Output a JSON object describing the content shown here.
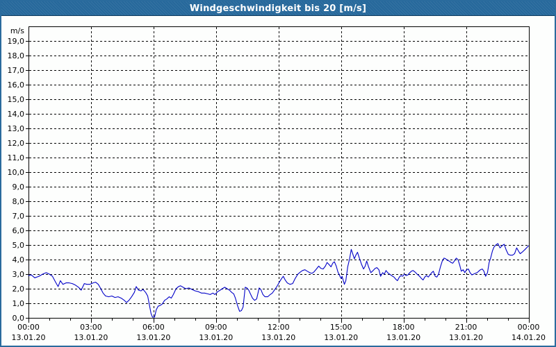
{
  "window": {
    "title": "Windgeschwindigkeit bis 20 [m/s]"
  },
  "colors": {
    "frame": "#2a6b9d",
    "title_bar": "#26689b",
    "title_bar_edge": "#0d3a5e",
    "background": "#fdfefd",
    "grid": "#000000",
    "line": "#0000c8",
    "title_text": "#ffffff"
  },
  "chart_data": {
    "type": "line",
    "title": "Windgeschwindigkeit bis 20 [m/s]",
    "ylabel_unit": "m/s",
    "ylim": [
      0,
      20
    ],
    "xlim_hours": [
      0,
      24
    ],
    "grid": "dashed, horizontal every 1 m/s, vertical every 3 h",
    "legend_position": "none",
    "y_tick_labels": [
      "0,0",
      "1,0",
      "2,0",
      "3,0",
      "4,0",
      "5,0",
      "6,0",
      "7,0",
      "8,0",
      "9,0",
      "10,0",
      "11,0",
      "12,0",
      "13,0",
      "14,0",
      "15,0",
      "16,0",
      "17,0",
      "18,0",
      "19,0"
    ],
    "x_ticks": [
      {
        "hour": 0,
        "time": "00:00",
        "date": "13.01.20"
      },
      {
        "hour": 3,
        "time": "03:00",
        "date": "13.01.20"
      },
      {
        "hour": 6,
        "time": "06:00",
        "date": "13.01.20"
      },
      {
        "hour": 9,
        "time": "09:00",
        "date": "13.01.20"
      },
      {
        "hour": 12,
        "time": "12:00",
        "date": "13.01.20"
      },
      {
        "hour": 15,
        "time": "15:00",
        "date": "13.01.20"
      },
      {
        "hour": 18,
        "time": "18:00",
        "date": "13.01.20"
      },
      {
        "hour": 21,
        "time": "21:00",
        "date": "13.01.20"
      },
      {
        "hour": 24,
        "time": "00:00",
        "date": "14.01.20"
      }
    ],
    "minor_x_tick_interval_hours": 1,
    "series": [
      {
        "name": "Windgeschwindigkeit",
        "unit": "m/s",
        "color": "#0000c8",
        "points": [
          [
            0.0,
            2.9
          ],
          [
            0.13,
            2.95
          ],
          [
            0.3,
            2.75
          ],
          [
            0.5,
            2.85
          ],
          [
            0.68,
            3.0
          ],
          [
            0.85,
            3.1
          ],
          [
            1.0,
            3.0
          ],
          [
            1.15,
            2.85
          ],
          [
            1.3,
            2.45
          ],
          [
            1.42,
            2.15
          ],
          [
            1.53,
            2.55
          ],
          [
            1.65,
            2.3
          ],
          [
            1.8,
            2.4
          ],
          [
            1.95,
            2.4
          ],
          [
            2.1,
            2.35
          ],
          [
            2.25,
            2.25
          ],
          [
            2.4,
            2.1
          ],
          [
            2.53,
            1.9
          ],
          [
            2.68,
            2.35
          ],
          [
            2.8,
            2.3
          ],
          [
            2.95,
            2.3
          ],
          [
            3.1,
            2.4
          ],
          [
            3.22,
            2.45
          ],
          [
            3.35,
            2.3
          ],
          [
            3.45,
            2.05
          ],
          [
            3.58,
            1.7
          ],
          [
            3.7,
            1.5
          ],
          [
            3.85,
            1.45
          ],
          [
            4.0,
            1.5
          ],
          [
            4.15,
            1.4
          ],
          [
            4.3,
            1.45
          ],
          [
            4.45,
            1.35
          ],
          [
            4.6,
            1.2
          ],
          [
            4.7,
            1.05
          ],
          [
            4.82,
            1.2
          ],
          [
            4.95,
            1.45
          ],
          [
            5.08,
            1.75
          ],
          [
            5.17,
            2.15
          ],
          [
            5.28,
            1.9
          ],
          [
            5.4,
            1.85
          ],
          [
            5.5,
            1.95
          ],
          [
            5.62,
            1.75
          ],
          [
            5.72,
            1.5
          ],
          [
            5.8,
            0.9
          ],
          [
            5.88,
            0.3
          ],
          [
            5.95,
            0.05
          ],
          [
            6.05,
            0.05
          ],
          [
            6.13,
            0.55
          ],
          [
            6.22,
            0.8
          ],
          [
            6.32,
            0.85
          ],
          [
            6.42,
            0.95
          ],
          [
            6.53,
            1.2
          ],
          [
            6.64,
            1.3
          ],
          [
            6.75,
            1.45
          ],
          [
            6.85,
            1.35
          ],
          [
            6.95,
            1.6
          ],
          [
            7.08,
            2.0
          ],
          [
            7.2,
            2.15
          ],
          [
            7.3,
            2.2
          ],
          [
            7.42,
            2.1
          ],
          [
            7.55,
            2.0
          ],
          [
            7.7,
            2.05
          ],
          [
            7.85,
            1.95
          ],
          [
            8.0,
            1.85
          ],
          [
            8.15,
            1.8
          ],
          [
            8.3,
            1.7
          ],
          [
            8.45,
            1.7
          ],
          [
            8.6,
            1.65
          ],
          [
            8.72,
            1.6
          ],
          [
            8.85,
            1.7
          ],
          [
            8.95,
            1.6
          ],
          [
            9.08,
            1.8
          ],
          [
            9.2,
            1.9
          ],
          [
            9.3,
            2.0
          ],
          [
            9.42,
            2.1
          ],
          [
            9.53,
            2.0
          ],
          [
            9.65,
            1.9
          ],
          [
            9.75,
            1.75
          ],
          [
            9.85,
            1.65
          ],
          [
            9.93,
            1.35
          ],
          [
            10.03,
            0.85
          ],
          [
            10.13,
            0.45
          ],
          [
            10.22,
            0.5
          ],
          [
            10.3,
            0.75
          ],
          [
            10.4,
            2.1
          ],
          [
            10.48,
            2.05
          ],
          [
            10.57,
            1.9
          ],
          [
            10.65,
            1.65
          ],
          [
            10.75,
            1.35
          ],
          [
            10.85,
            1.2
          ],
          [
            10.95,
            1.3
          ],
          [
            11.07,
            2.05
          ],
          [
            11.15,
            1.95
          ],
          [
            11.25,
            1.6
          ],
          [
            11.35,
            1.45
          ],
          [
            11.48,
            1.45
          ],
          [
            11.6,
            1.6
          ],
          [
            11.7,
            1.7
          ],
          [
            11.8,
            1.9
          ],
          [
            11.92,
            2.15
          ],
          [
            12.04,
            2.45
          ],
          [
            12.15,
            2.7
          ],
          [
            12.23,
            2.85
          ],
          [
            12.32,
            2.6
          ],
          [
            12.42,
            2.4
          ],
          [
            12.55,
            2.3
          ],
          [
            12.68,
            2.35
          ],
          [
            12.8,
            2.7
          ],
          [
            12.93,
            3.0
          ],
          [
            13.05,
            3.15
          ],
          [
            13.15,
            3.25
          ],
          [
            13.27,
            3.3
          ],
          [
            13.38,
            3.2
          ],
          [
            13.5,
            3.1
          ],
          [
            13.6,
            3.05
          ],
          [
            13.7,
            3.15
          ],
          [
            13.82,
            3.35
          ],
          [
            13.93,
            3.55
          ],
          [
            14.03,
            3.4
          ],
          [
            14.14,
            3.35
          ],
          [
            14.25,
            3.55
          ],
          [
            14.33,
            3.8
          ],
          [
            14.43,
            3.65
          ],
          [
            14.52,
            3.5
          ],
          [
            14.6,
            3.75
          ],
          [
            14.68,
            3.85
          ],
          [
            14.77,
            3.55
          ],
          [
            14.85,
            3.15
          ],
          [
            14.95,
            2.85
          ],
          [
            15.0,
            2.7
          ],
          [
            15.05,
            2.85
          ],
          [
            15.1,
            2.6
          ],
          [
            15.16,
            2.3
          ],
          [
            15.23,
            2.55
          ],
          [
            15.32,
            3.5
          ],
          [
            15.41,
            4.05
          ],
          [
            15.49,
            4.7
          ],
          [
            15.57,
            4.35
          ],
          [
            15.64,
            4.05
          ],
          [
            15.71,
            4.3
          ],
          [
            15.79,
            4.5
          ],
          [
            15.88,
            4.1
          ],
          [
            15.99,
            3.65
          ],
          [
            16.08,
            3.35
          ],
          [
            16.16,
            3.55
          ],
          [
            16.23,
            3.9
          ],
          [
            16.32,
            3.5
          ],
          [
            16.43,
            3.1
          ],
          [
            16.54,
            3.25
          ],
          [
            16.64,
            3.4
          ],
          [
            16.72,
            3.45
          ],
          [
            16.82,
            3.3
          ],
          [
            16.9,
            2.85
          ],
          [
            17.0,
            3.1
          ],
          [
            17.08,
            3.0
          ],
          [
            17.16,
            3.25
          ],
          [
            17.24,
            3.1
          ],
          [
            17.33,
            3.0
          ],
          [
            17.43,
            2.9
          ],
          [
            17.54,
            2.8
          ],
          [
            17.63,
            2.65
          ],
          [
            17.71,
            2.55
          ],
          [
            17.8,
            2.8
          ],
          [
            17.88,
            2.9
          ],
          [
            17.96,
            2.85
          ],
          [
            18.04,
            3.0
          ],
          [
            18.12,
            2.9
          ],
          [
            18.21,
            2.95
          ],
          [
            18.3,
            3.1
          ],
          [
            18.38,
            3.2
          ],
          [
            18.46,
            3.25
          ],
          [
            18.55,
            3.15
          ],
          [
            18.65,
            3.0
          ],
          [
            18.77,
            2.85
          ],
          [
            18.86,
            2.7
          ],
          [
            18.94,
            2.6
          ],
          [
            19.02,
            2.8
          ],
          [
            19.1,
            2.9
          ],
          [
            19.19,
            2.8
          ],
          [
            19.27,
            2.95
          ],
          [
            19.35,
            3.1
          ],
          [
            19.43,
            3.2
          ],
          [
            19.52,
            2.85
          ],
          [
            19.6,
            2.8
          ],
          [
            19.68,
            3.0
          ],
          [
            19.77,
            3.5
          ],
          [
            19.86,
            3.9
          ],
          [
            19.94,
            4.1
          ],
          [
            20.02,
            4.05
          ],
          [
            20.1,
            3.95
          ],
          [
            20.19,
            3.9
          ],
          [
            20.28,
            3.8
          ],
          [
            20.36,
            3.75
          ],
          [
            20.44,
            3.9
          ],
          [
            20.53,
            4.1
          ],
          [
            20.61,
            4.0
          ],
          [
            20.69,
            3.65
          ],
          [
            20.77,
            3.2
          ],
          [
            20.86,
            3.3
          ],
          [
            20.94,
            3.1
          ],
          [
            21.02,
            3.3
          ],
          [
            21.11,
            3.35
          ],
          [
            21.19,
            3.1
          ],
          [
            21.28,
            2.95
          ],
          [
            21.36,
            3.0
          ],
          [
            21.44,
            3.05
          ],
          [
            21.53,
            3.1
          ],
          [
            21.61,
            3.2
          ],
          [
            21.69,
            3.3
          ],
          [
            21.78,
            3.35
          ],
          [
            21.86,
            3.2
          ],
          [
            21.94,
            2.85
          ],
          [
            22.03,
            3.1
          ],
          [
            22.11,
            3.8
          ],
          [
            22.19,
            4.15
          ],
          [
            22.27,
            4.6
          ],
          [
            22.34,
            4.85
          ],
          [
            22.43,
            5.0
          ],
          [
            22.53,
            5.1
          ],
          [
            22.63,
            4.8
          ],
          [
            22.73,
            4.95
          ],
          [
            22.83,
            5.05
          ],
          [
            22.93,
            4.65
          ],
          [
            23.03,
            4.35
          ],
          [
            23.13,
            4.3
          ],
          [
            23.23,
            4.3
          ],
          [
            23.33,
            4.4
          ],
          [
            23.43,
            4.8
          ],
          [
            23.53,
            4.55
          ],
          [
            23.6,
            4.4
          ],
          [
            23.73,
            4.55
          ],
          [
            23.87,
            4.75
          ],
          [
            24.0,
            4.95
          ]
        ]
      }
    ]
  }
}
